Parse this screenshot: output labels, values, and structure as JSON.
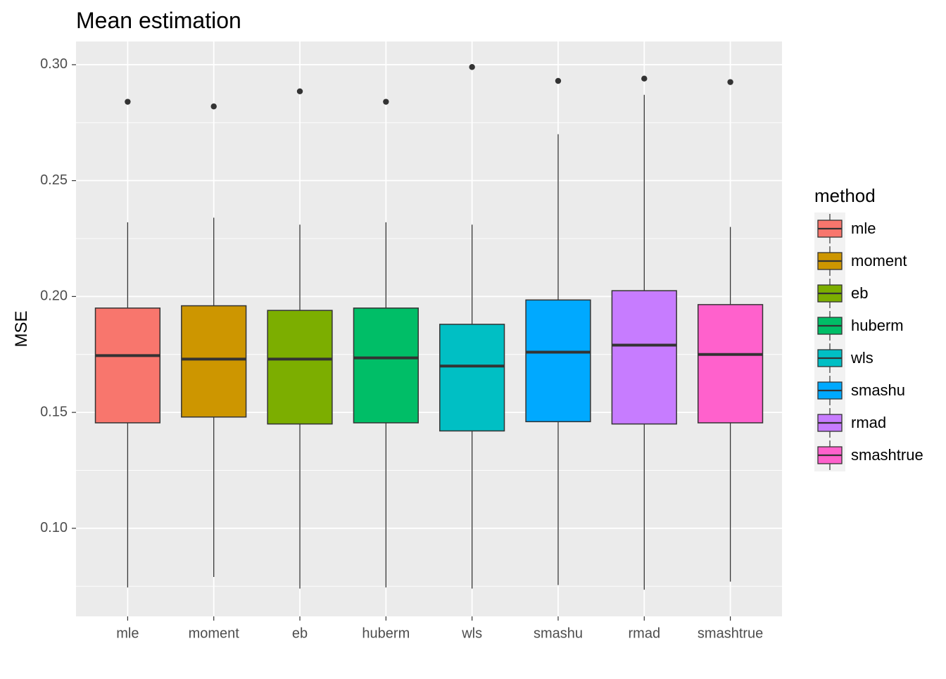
{
  "chart_data": {
    "type": "boxplot",
    "title": "Mean estimation",
    "xlabel": "",
    "ylabel": "MSE",
    "ylim": [
      0.062,
      0.31
    ],
    "yticks": [
      0.1,
      0.15,
      0.2,
      0.25,
      0.3
    ],
    "ytick_labels": [
      "0.10",
      "0.15",
      "0.20",
      "0.25",
      "0.30"
    ],
    "grid": true,
    "legend": {
      "title": "method",
      "placement": "right"
    },
    "categories": [
      "mle",
      "moment",
      "eb",
      "huberm",
      "wls",
      "smashu",
      "rmad",
      "smashtrue"
    ],
    "series": [
      {
        "name": "mle",
        "color": "#F8766D",
        "min": 0.0745,
        "q1": 0.1455,
        "median": 0.1745,
        "q3": 0.195,
        "max": 0.232,
        "outliers": [
          0.284
        ]
      },
      {
        "name": "moment",
        "color": "#CD9600",
        "min": 0.079,
        "q1": 0.148,
        "median": 0.173,
        "q3": 0.196,
        "max": 0.234,
        "outliers": [
          0.282
        ]
      },
      {
        "name": "eb",
        "color": "#7CAE00",
        "min": 0.074,
        "q1": 0.145,
        "median": 0.173,
        "q3": 0.194,
        "max": 0.231,
        "outliers": [
          0.2885
        ]
      },
      {
        "name": "huberm",
        "color": "#00BE67",
        "min": 0.0745,
        "q1": 0.1455,
        "median": 0.1735,
        "q3": 0.195,
        "max": 0.232,
        "outliers": [
          0.284
        ]
      },
      {
        "name": "wls",
        "color": "#00BFC4",
        "min": 0.074,
        "q1": 0.142,
        "median": 0.17,
        "q3": 0.188,
        "max": 0.231,
        "outliers": [
          0.299
        ]
      },
      {
        "name": "smashu",
        "color": "#00A9FF",
        "min": 0.0755,
        "q1": 0.146,
        "median": 0.176,
        "q3": 0.1985,
        "max": 0.27,
        "outliers": [
          0.293
        ]
      },
      {
        "name": "rmad",
        "color": "#C77CFF",
        "min": 0.0735,
        "q1": 0.145,
        "median": 0.179,
        "q3": 0.2025,
        "max": 0.287,
        "outliers": [
          0.294
        ]
      },
      {
        "name": "smashtrue",
        "color": "#FF61CC",
        "min": 0.077,
        "q1": 0.1455,
        "median": 0.175,
        "q3": 0.1965,
        "max": 0.23,
        "outliers": [
          0.2925
        ]
      }
    ]
  }
}
